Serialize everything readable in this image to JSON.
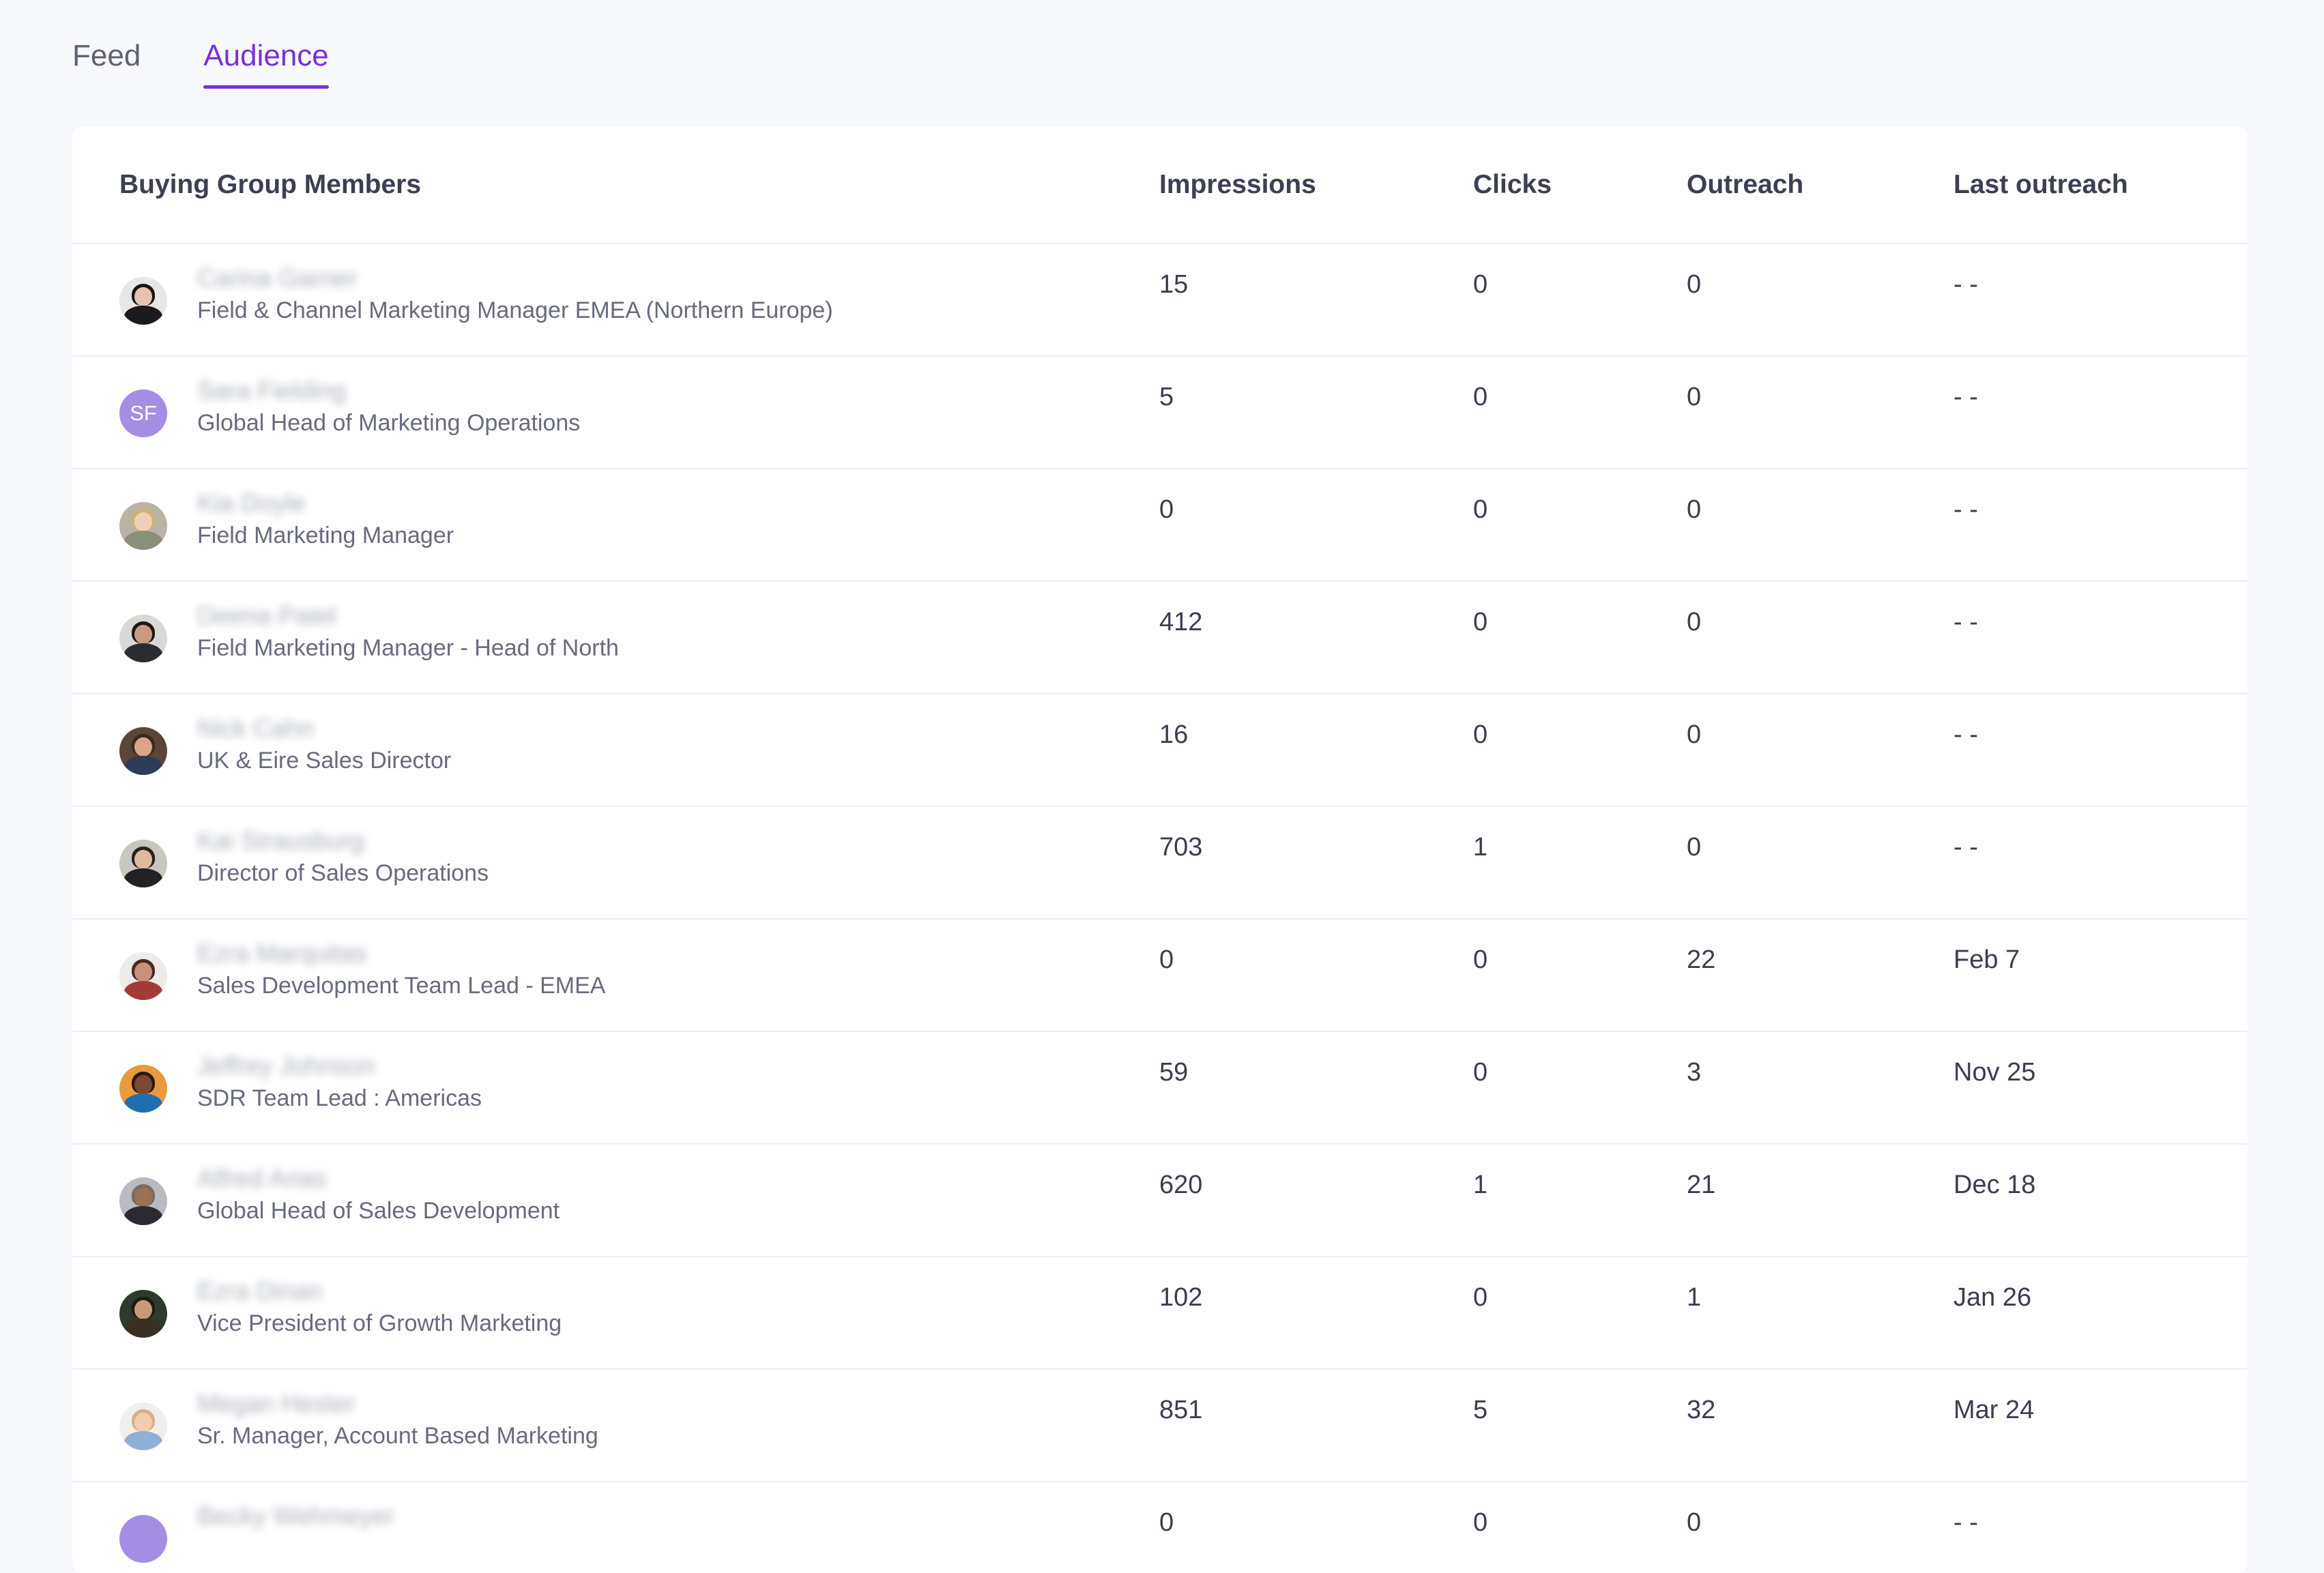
{
  "tabs": [
    {
      "label": "Feed",
      "active": false
    },
    {
      "label": "Audience",
      "active": true
    }
  ],
  "accent_color": "#7b2fd8",
  "table": {
    "headers": {
      "member": "Buying Group Members",
      "impressions": "Impressions",
      "clicks": "Clicks",
      "outreach": "Outreach",
      "last_outreach": "Last outreach"
    },
    "rows": [
      {
        "name": "Carina Garner",
        "title": "Field & Channel Marketing Manager EMEA (Northern Europe)",
        "avatar_initials": "",
        "impressions": "15",
        "clicks": "0",
        "outreach": "0",
        "last_outreach": "- -"
      },
      {
        "name": "Sara Fielding",
        "title": "Global Head of Marketing Operations",
        "avatar_initials": "SF",
        "impressions": "5",
        "clicks": "0",
        "outreach": "0",
        "last_outreach": "- -"
      },
      {
        "name": "Kia Doyle",
        "title": "Field Marketing Manager",
        "avatar_initials": "",
        "impressions": "0",
        "clicks": "0",
        "outreach": "0",
        "last_outreach": "- -"
      },
      {
        "name": "Deena Patel",
        "title": "Field Marketing Manager - Head of North",
        "avatar_initials": "",
        "impressions": "412",
        "clicks": "0",
        "outreach": "0",
        "last_outreach": "- -"
      },
      {
        "name": "Nick Cahn",
        "title": "UK & Eire Sales Director",
        "avatar_initials": "",
        "impressions": "16",
        "clicks": "0",
        "outreach": "0",
        "last_outreach": "- -"
      },
      {
        "name": "Kai Strausburg",
        "title": "Director of Sales Operations",
        "avatar_initials": "",
        "impressions": "703",
        "clicks": "1",
        "outreach": "0",
        "last_outreach": "- -"
      },
      {
        "name": "Ezra Marquitas",
        "title": "Sales Development Team Lead - EMEA",
        "avatar_initials": "",
        "impressions": "0",
        "clicks": "0",
        "outreach": "22",
        "last_outreach": "Feb 7"
      },
      {
        "name": "Jeffrey Johnson",
        "title": "SDR Team Lead : Americas",
        "avatar_initials": "",
        "impressions": "59",
        "clicks": "0",
        "outreach": "3",
        "last_outreach": "Nov 25"
      },
      {
        "name": "Alfred Arias",
        "title": "Global Head of Sales Development",
        "avatar_initials": "",
        "impressions": "620",
        "clicks": "1",
        "outreach": "21",
        "last_outreach": "Dec 18"
      },
      {
        "name": "Ezra Dinan",
        "title": "Vice President of Growth Marketing",
        "avatar_initials": "",
        "impressions": "102",
        "clicks": "0",
        "outreach": "1",
        "last_outreach": "Jan 26"
      },
      {
        "name": "Megan Hester",
        "title": "Sr. Manager, Account Based Marketing",
        "avatar_initials": "",
        "impressions": "851",
        "clicks": "5",
        "outreach": "32",
        "last_outreach": "Mar 24"
      },
      {
        "name": "Becky Wehmeyer",
        "title": "",
        "avatar_initials": "",
        "impressions": "0",
        "clicks": "0",
        "outreach": "0",
        "last_outreach": "- -"
      }
    ]
  }
}
